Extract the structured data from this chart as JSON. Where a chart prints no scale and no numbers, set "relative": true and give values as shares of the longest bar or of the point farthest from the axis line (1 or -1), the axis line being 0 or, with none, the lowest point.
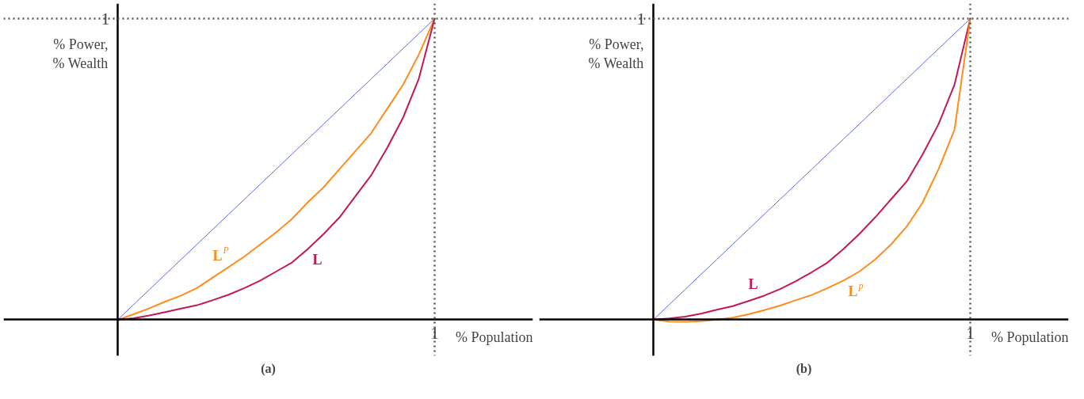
{
  "chart_data": [
    {
      "type": "line",
      "title": "(a)",
      "xlabel": "% Population",
      "ylabel": "% Power,\n% Wealth",
      "relative": true,
      "marker": "none",
      "line_style": "solid",
      "categories": [
        null,
        null,
        null,
        null,
        null,
        null,
        null,
        null,
        null,
        null,
        null,
        null,
        null,
        null,
        null,
        null,
        null,
        null,
        null,
        null,
        null
      ],
      "series": [
        {
          "color": "#5566ee",
          "values": [
            0,
            0.05,
            0.1,
            0.15,
            0.2,
            0.25,
            0.3,
            0.35,
            0.4,
            0.45,
            0.5,
            0.55,
            0.6,
            0.65,
            0.7,
            0.75,
            0.8,
            0.85,
            0.9,
            0.95,
            1
          ]
        },
        {
          "name": "L$^{P}$",
          "color": "#ff8c1a",
          "values": [
            0,
            0.018,
            0.038,
            0.06,
            0.08,
            0.105,
            0.14,
            0.175,
            0.21,
            0.25,
            0.29,
            0.335,
            0.39,
            0.44,
            0.5,
            0.56,
            0.62,
            0.7,
            0.78,
            0.88,
            1
          ]
        },
        {
          "name": "L",
          "color": "#c2185b",
          "values": [
            0,
            0.005,
            0.014,
            0.025,
            0.037,
            0.048,
            0.065,
            0.083,
            0.105,
            0.13,
            0.16,
            0.19,
            0.235,
            0.285,
            0.34,
            0.41,
            0.48,
            0.57,
            0.67,
            0.8,
            1
          ]
        }
      ],
      "annotations": [
        "1",
        "1"
      ],
      "ref_lines": [
        {
          "axis": "y",
          "value": 1,
          "color": "#555555",
          "line_style": "dotted"
        },
        {
          "axis": "x",
          "color": "#555555",
          "line_style": "dotted"
        }
      ]
    },
    {
      "type": "line",
      "title": "(b)",
      "xlabel": "% Population",
      "ylabel": "% Power,\n% Wealth",
      "relative": true,
      "marker": "none",
      "line_style": "solid",
      "categories": [
        null,
        null,
        null,
        null,
        null,
        null,
        null,
        null,
        null,
        null,
        null,
        null,
        null,
        null,
        null,
        null,
        null,
        null,
        null,
        null,
        null
      ],
      "series": [
        {
          "color": "#5566ee",
          "values": [
            0,
            0.05,
            0.1,
            0.15,
            0.2,
            0.25,
            0.3,
            0.35,
            0.4,
            0.45,
            0.5,
            0.55,
            0.6,
            0.65,
            0.7,
            0.75,
            0.8,
            0.85,
            0.9,
            0.95,
            1
          ]
        },
        {
          "name": "L",
          "color": "#c2185b",
          "values": [
            0,
            0.004,
            0.01,
            0.02,
            0.033,
            0.045,
            0.062,
            0.08,
            0.102,
            0.128,
            0.158,
            0.19,
            0.235,
            0.285,
            0.34,
            0.4,
            0.46,
            0.55,
            0.65,
            0.78,
            1
          ]
        },
        {
          "name": "L$^{p}$",
          "color": "#ff8c1a",
          "values": [
            0,
            -0.006,
            -0.007,
            -0.005,
            0,
            0.007,
            0.018,
            0.032,
            0.047,
            0.065,
            0.082,
            0.105,
            0.13,
            0.16,
            0.2,
            0.25,
            0.31,
            0.39,
            0.5,
            0.63,
            1
          ]
        }
      ],
      "annotations": [
        "1",
        "1"
      ],
      "ref_lines": [
        {
          "axis": "y",
          "value": 1,
          "color": "#555555",
          "line_style": "dotted"
        },
        {
          "axis": "x",
          "color": "#555555",
          "line_style": "dotted"
        }
      ]
    }
  ]
}
